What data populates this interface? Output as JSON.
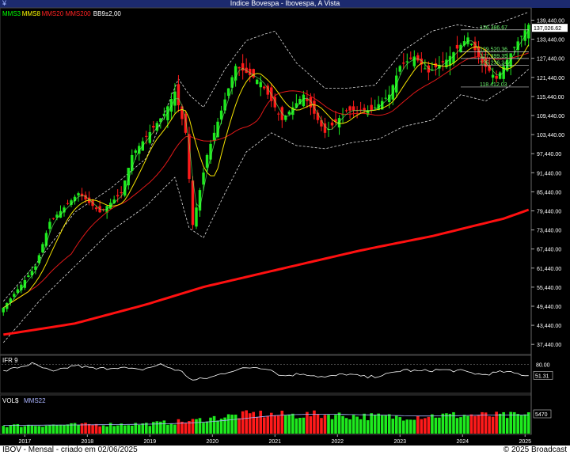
{
  "window": {
    "title": "Indice Bovespa - Ibovespa, A Vista",
    "menu_glyph": "¥"
  },
  "legend": [
    {
      "label": "MMS3",
      "color": "#00ff00"
    },
    {
      "label": "MMS8",
      "color": "#ffff00"
    },
    {
      "label": "MMS20",
      "color": "#ff2222"
    },
    {
      "label": "MMS200",
      "color": "#ff2222"
    },
    {
      "label": "BB9±2,00",
      "color": "#ffffff"
    }
  ],
  "chart_data": [
    {
      "type": "candlestick",
      "title": "Indice Bovespa - Ibovespa, A Vista",
      "timeframe": "Mensal",
      "x_ticks": [
        "2017",
        "2018",
        "2019",
        "2020",
        "2021",
        "2022",
        "2023",
        "2024",
        "2025"
      ],
      "y_ticks": [
        37440,
        43440,
        49440,
        55440,
        61440,
        67440,
        73440,
        79440,
        85440,
        91440,
        97440,
        103440,
        109440,
        115440,
        121440,
        127440,
        133440,
        139440
      ],
      "ylim": [
        34500,
        142800
      ],
      "last_value": 137026.62,
      "level_labels": [
        "136.386,67",
        "129.520,36",
        "127.399,35",
        "125.236,24",
        "118.412,03"
      ],
      "levels": [
        136386.67,
        129520.36,
        127399.35,
        125236.24,
        118412.03
      ],
      "anchors": {
        "close": [
          [
            0,
            49000
          ],
          [
            9,
            62000
          ],
          [
            13,
            76000
          ],
          [
            21,
            85000
          ],
          [
            27,
            79000
          ],
          [
            33,
            85000
          ],
          [
            36,
            97000
          ],
          [
            45,
            110000
          ],
          [
            48,
            117000
          ],
          [
            51,
            104000
          ],
          [
            53,
            75000
          ],
          [
            57,
            97000
          ],
          [
            65,
            125000
          ],
          [
            72,
            120000
          ],
          [
            78,
            108000
          ],
          [
            84,
            116000
          ],
          [
            90,
            104000
          ],
          [
            96,
            111000
          ],
          [
            103,
            111000
          ],
          [
            108,
            116000
          ],
          [
            111,
            125000
          ],
          [
            115,
            128000
          ],
          [
            119,
            123000
          ],
          [
            124,
            127000
          ],
          [
            130,
            134000
          ],
          [
            134,
            126000
          ],
          [
            138,
            121000
          ],
          [
            143,
            131000
          ],
          [
            147,
            138000
          ]
        ],
        "mms200": [
          [
            0,
            40500
          ],
          [
            20,
            44000
          ],
          [
            40,
            50000
          ],
          [
            56,
            55500
          ],
          [
            80,
            61800
          ],
          [
            100,
            67000
          ],
          [
            120,
            71500
          ],
          [
            140,
            77000
          ],
          [
            147,
            79800
          ]
        ],
        "bb_upper": [
          [
            0,
            51000
          ],
          [
            10,
            64000
          ],
          [
            20,
            79000
          ],
          [
            30,
            86500
          ],
          [
            40,
            96000
          ],
          [
            49,
            121000
          ],
          [
            52,
            116000
          ],
          [
            56,
            112000
          ],
          [
            62,
            124000
          ],
          [
            68,
            133000
          ],
          [
            73,
            135000
          ],
          [
            76,
            136000
          ],
          [
            82,
            126000
          ],
          [
            90,
            118000
          ],
          [
            96,
            118000
          ],
          [
            104,
            119000
          ],
          [
            112,
            130000
          ],
          [
            120,
            136000
          ],
          [
            127,
            138000
          ],
          [
            133,
            137000
          ],
          [
            140,
            139000
          ],
          [
            147,
            142000
          ]
        ],
        "bb_lower": [
          [
            0,
            38000
          ],
          [
            10,
            51000
          ],
          [
            20,
            62000
          ],
          [
            30,
            73000
          ],
          [
            40,
            81000
          ],
          [
            48,
            90000
          ],
          [
            52,
            74000
          ],
          [
            56,
            71000
          ],
          [
            62,
            85000
          ],
          [
            68,
            98000
          ],
          [
            75,
            104000
          ],
          [
            82,
            100000
          ],
          [
            90,
            99000
          ],
          [
            98,
            101000
          ],
          [
            105,
            102000
          ],
          [
            112,
            106000
          ],
          [
            120,
            108000
          ],
          [
            128,
            116000
          ],
          [
            135,
            114000
          ],
          [
            142,
            119000
          ],
          [
            147,
            124000
          ]
        ]
      }
    },
    {
      "type": "line",
      "title": "IFR 9",
      "y_ticks": [
        80
      ],
      "last_value": 51.31,
      "last_value_label": "51.31",
      "anchors": [
        [
          0,
          62
        ],
        [
          8,
          82
        ],
        [
          14,
          60
        ],
        [
          20,
          78
        ],
        [
          26,
          68
        ],
        [
          32,
          73
        ],
        [
          38,
          65
        ],
        [
          44,
          80
        ],
        [
          50,
          60
        ],
        [
          53,
          38
        ],
        [
          58,
          46
        ],
        [
          64,
          64
        ],
        [
          70,
          73
        ],
        [
          74,
          70
        ],
        [
          78,
          50
        ],
        [
          84,
          56
        ],
        [
          90,
          46
        ],
        [
          96,
          55
        ],
        [
          102,
          46
        ],
        [
          108,
          55
        ],
        [
          112,
          66
        ],
        [
          116,
          62
        ],
        [
          122,
          66
        ],
        [
          128,
          63
        ],
        [
          134,
          53
        ],
        [
          140,
          61
        ],
        [
          147,
          51
        ]
      ]
    },
    {
      "type": "bar",
      "title": "VOL$",
      "series_label": "MMS22",
      "last_value_label": "5470",
      "anchors": [
        [
          0,
          0.35
        ],
        [
          20,
          0.38
        ],
        [
          40,
          0.42
        ],
        [
          53,
          0.55
        ],
        [
          60,
          0.7
        ],
        [
          70,
          0.85
        ],
        [
          80,
          0.8
        ],
        [
          90,
          0.82
        ],
        [
          100,
          0.75
        ],
        [
          110,
          0.72
        ],
        [
          120,
          0.78
        ],
        [
          130,
          0.8
        ],
        [
          140,
          0.77
        ],
        [
          147,
          0.78
        ]
      ]
    }
  ],
  "footer": {
    "left": "IBOV - Mensal - criado em 02/06/2025",
    "right": "© 2025 Broadcast"
  }
}
